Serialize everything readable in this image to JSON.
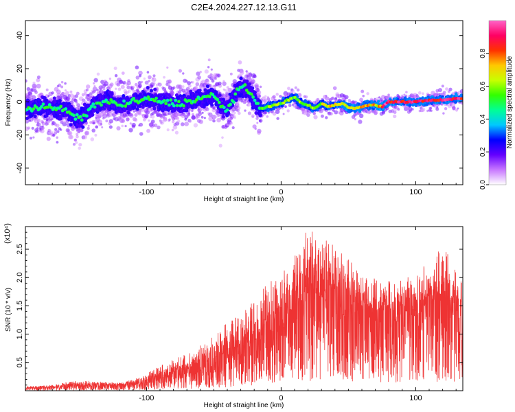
{
  "title": "C2E4.2024.227.12.13.G11",
  "chart_data": [
    {
      "type": "heatmap",
      "id": "spectrogram",
      "xlabel": "Height of straight line (km)",
      "ylabel": "Frequency (Hz)",
      "xlim": [
        -190,
        135
      ],
      "ylim": [
        -50,
        49
      ],
      "x_ticks": [
        -100,
        0,
        100
      ],
      "y_ticks": [
        -40,
        -20,
        0,
        20,
        40
      ],
      "grid": false,
      "colorbar": {
        "label": "Normalized spectral amplitude",
        "range": [
          0.0,
          1.0
        ],
        "ticks": [
          "0.0",
          "0.2",
          "0.4",
          "0.6",
          "0.8"
        ],
        "colors": [
          "#ffffff",
          "#c878ff",
          "#6400ff",
          "#0000ff",
          "#00c8ff",
          "#00ff96",
          "#32ff00",
          "#c8ff00",
          "#ffc800",
          "#ff3200",
          "#ff0064",
          "#ff64c8"
        ]
      },
      "ridge_frequency_hz": [
        {
          "x": -190,
          "y": -4
        },
        {
          "x": -175,
          "y": -3
        },
        {
          "x": -160,
          "y": -5
        },
        {
          "x": -150,
          "y": -11
        },
        {
          "x": -140,
          "y": -3
        },
        {
          "x": -130,
          "y": 1
        },
        {
          "x": -120,
          "y": -2
        },
        {
          "x": -110,
          "y": 0
        },
        {
          "x": -100,
          "y": 2
        },
        {
          "x": -90,
          "y": 0
        },
        {
          "x": -80,
          "y": -1
        },
        {
          "x": -70,
          "y": 0
        },
        {
          "x": -60,
          "y": 2
        },
        {
          "x": -50,
          "y": 4
        },
        {
          "x": -45,
          "y": -2
        },
        {
          "x": -40,
          "y": -5
        },
        {
          "x": -35,
          "y": 3
        },
        {
          "x": -30,
          "y": 9
        },
        {
          "x": -25,
          "y": 7
        },
        {
          "x": -20,
          "y": 1
        },
        {
          "x": -15,
          "y": -4
        },
        {
          "x": -10,
          "y": -3
        },
        {
          "x": -5,
          "y": -2
        },
        {
          "x": 0,
          "y": -1
        },
        {
          "x": 5,
          "y": 1
        },
        {
          "x": 10,
          "y": 3
        },
        {
          "x": 15,
          "y": -1
        },
        {
          "x": 20,
          "y": -2
        },
        {
          "x": 25,
          "y": -4
        },
        {
          "x": 30,
          "y": -1
        },
        {
          "x": 35,
          "y": -3
        },
        {
          "x": 40,
          "y": -2
        },
        {
          "x": 45,
          "y": -1
        },
        {
          "x": 50,
          "y": -3
        },
        {
          "x": 55,
          "y": -4
        },
        {
          "x": 60,
          "y": -3
        },
        {
          "x": 65,
          "y": -2
        },
        {
          "x": 70,
          "y": -2
        },
        {
          "x": 75,
          "y": -3
        },
        {
          "x": 80,
          "y": 0
        },
        {
          "x": 90,
          "y": 0
        },
        {
          "x": 100,
          "y": 0
        },
        {
          "x": 110,
          "y": 1
        },
        {
          "x": 120,
          "y": 1
        },
        {
          "x": 130,
          "y": 2
        }
      ]
    },
    {
      "type": "line",
      "id": "snr",
      "xlabel": "Height of straight line (km)",
      "ylabel": "SNR (10 * v/v)",
      "y_multiplier": "(x10⁴)",
      "xlim": [
        -190,
        135
      ],
      "ylim": [
        0,
        2.9
      ],
      "x_ticks": [
        -100,
        0,
        100
      ],
      "y_ticks": [
        "0.5",
        "1.0",
        "1.5",
        "2.0",
        "2.5"
      ],
      "grid": false,
      "line_color": "#ee3333",
      "series": [
        {
          "x": [
            -190,
            -180,
            -170,
            -160,
            -150,
            -140,
            -130,
            -120,
            -110,
            -100,
            -90,
            -80,
            -70,
            -60,
            -50,
            -40,
            -30,
            -20,
            -10,
            0,
            10,
            20,
            30,
            40,
            50,
            60,
            70,
            80,
            90,
            100,
            110,
            120,
            130,
            135
          ],
          "values": [
            0.05,
            0.05,
            0.06,
            0.08,
            0.1,
            0.1,
            0.1,
            0.1,
            0.12,
            0.15,
            0.22,
            0.28,
            0.35,
            0.45,
            0.55,
            0.65,
            0.8,
            0.95,
            1.05,
            1.2,
            1.5,
            1.7,
            1.75,
            1.8,
            1.6,
            1.5,
            1.4,
            1.35,
            1.4,
            1.3,
            1.5,
            1.4,
            1.35,
            1.2
          ],
          "envelope_max": [
            0.08,
            0.08,
            0.1,
            0.15,
            0.18,
            0.18,
            0.15,
            0.14,
            0.2,
            0.3,
            0.45,
            0.55,
            0.65,
            0.8,
            1.0,
            1.2,
            1.35,
            1.6,
            1.9,
            2.1,
            2.4,
            2.9,
            2.7,
            2.6,
            2.35,
            2.0,
            2.0,
            1.95,
            2.0,
            2.05,
            2.3,
            2.55,
            2.2,
            1.9
          ]
        }
      ]
    }
  ]
}
